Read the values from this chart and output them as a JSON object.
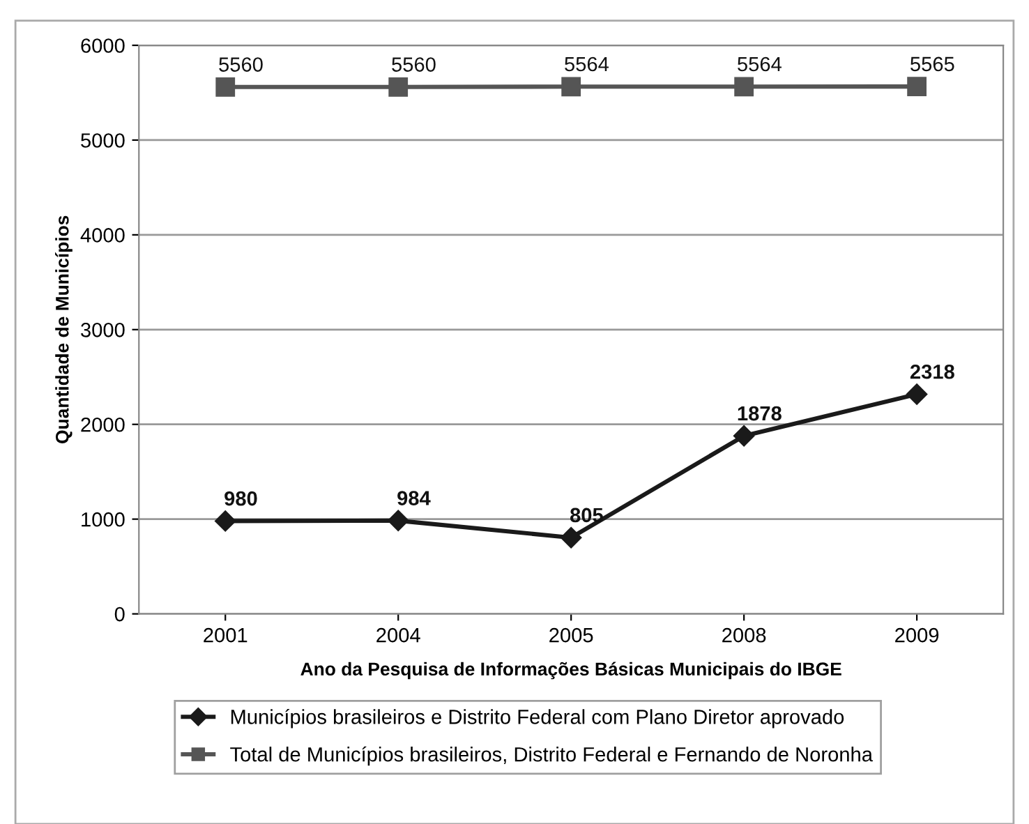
{
  "chart_data": {
    "type": "line",
    "xlabel": "Ano da Pesquisa de Informações Básicas Municipais do IBGE",
    "ylabel": "Quantidade de Municípios",
    "categories": [
      "2001",
      "2004",
      "2005",
      "2008",
      "2009"
    ],
    "series": [
      {
        "name": "Municípios brasileiros e Distrito Federal com Plano Diretor aprovado",
        "color": "#1a1a1a",
        "marker": "diamond",
        "values": [
          980,
          984,
          805,
          1878,
          2318
        ]
      },
      {
        "name": "Total de Municípios brasileiros, Distrito Federal e Fernando de Noronha",
        "color": "#555555",
        "marker": "square",
        "values": [
          5560,
          5560,
          5564,
          5564,
          5565
        ]
      }
    ],
    "ylim": [
      0,
      6000
    ],
    "yticks": [
      0,
      1000,
      2000,
      3000,
      4000,
      5000,
      6000
    ],
    "grid": "y",
    "legend": "bottom",
    "data_labels": true,
    "line_style": "solid"
  }
}
